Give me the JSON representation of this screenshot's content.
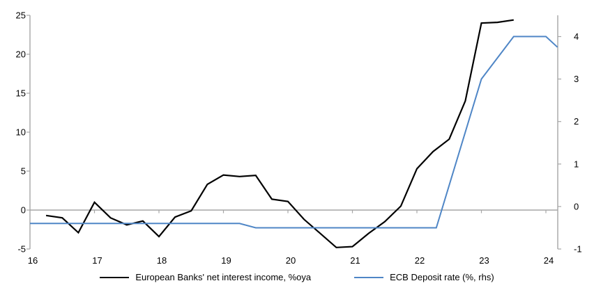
{
  "chart_data": {
    "type": "line",
    "title": "",
    "xlabel": "",
    "ylabel_left": "",
    "ylabel_right": "",
    "grid": false,
    "zero_gridline": true,
    "legend_position": "bottom",
    "x_axis": {
      "min": 16,
      "max": 24.18,
      "tick_values": [
        16,
        17,
        18,
        19,
        20,
        21,
        22,
        23,
        24
      ],
      "tick_labels": [
        "16",
        "17",
        "18",
        "19",
        "20",
        "21",
        "22",
        "23",
        "24"
      ]
    },
    "left_axis": {
      "min": -5,
      "max": 25,
      "ticks": [
        -5,
        0,
        5,
        10,
        15,
        20,
        25
      ]
    },
    "right_axis": {
      "min": -1,
      "max": 4.5,
      "ticks": [
        -1,
        0,
        1,
        2,
        3,
        4
      ]
    },
    "series": [
      {
        "name": "European Banks' net interest income, %oya",
        "axis": "left",
        "color": "#000000",
        "width": 2.2,
        "points": [
          [
            16.25,
            -0.7
          ],
          [
            16.5,
            -1.0
          ],
          [
            16.75,
            -2.9
          ],
          [
            17.0,
            1.0
          ],
          [
            17.25,
            -1.0
          ],
          [
            17.5,
            -1.9
          ],
          [
            17.75,
            -1.4
          ],
          [
            18.0,
            -3.4
          ],
          [
            18.25,
            -0.9
          ],
          [
            18.5,
            -0.1
          ],
          [
            18.75,
            3.3
          ],
          [
            19.0,
            4.5
          ],
          [
            19.25,
            4.3
          ],
          [
            19.5,
            4.45
          ],
          [
            19.75,
            1.4
          ],
          [
            20.0,
            1.1
          ],
          [
            20.25,
            -1.2
          ],
          [
            20.5,
            -3.0
          ],
          [
            20.75,
            -4.8
          ],
          [
            21.0,
            -4.7
          ],
          [
            21.25,
            -3.0
          ],
          [
            21.5,
            -1.5
          ],
          [
            21.75,
            0.5
          ],
          [
            22.0,
            5.3
          ],
          [
            22.25,
            7.5
          ],
          [
            22.5,
            9.1
          ],
          [
            22.75,
            14.0
          ],
          [
            23.0,
            24.0
          ],
          [
            23.25,
            24.1
          ],
          [
            23.5,
            24.4
          ]
        ]
      },
      {
        "name": "ECB Deposit rate (%, rhs)",
        "axis": "right",
        "color": "#4f86c6",
        "width": 2,
        "points": [
          [
            16.0,
            -0.4
          ],
          [
            19.25,
            -0.4
          ],
          [
            19.5,
            -0.5
          ],
          [
            22.3,
            -0.5
          ],
          [
            23.0,
            3.0
          ],
          [
            23.5,
            4.0
          ],
          [
            24.0,
            4.0
          ],
          [
            24.18,
            3.75
          ]
        ]
      }
    ]
  },
  "colors": {
    "axis": "#a6a6a6",
    "text": "#000000",
    "background": "#ffffff"
  }
}
